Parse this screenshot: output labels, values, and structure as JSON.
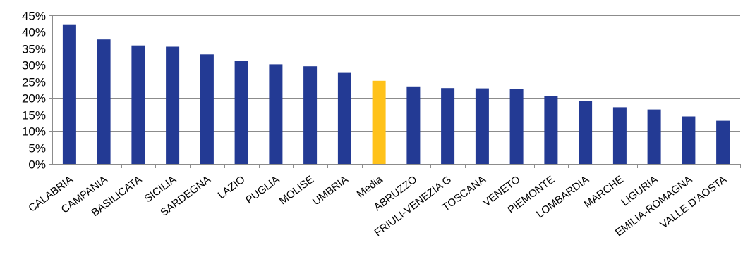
{
  "chart_data": {
    "type": "bar",
    "title": "",
    "xlabel": "",
    "ylabel": "",
    "ylim": [
      0,
      45
    ],
    "yticks": [
      "0%",
      "5%",
      "10%",
      "15%",
      "20%",
      "25%",
      "30%",
      "35%",
      "40%",
      "45%"
    ],
    "grid": true,
    "legend": "none",
    "categories": [
      "CALABRIA",
      "CAMPANIA",
      "BASILICATA",
      "SICILIA",
      "SARDEGNA",
      "LAZIO",
      "PUGLIA",
      "MOLISE",
      "UMBRIA",
      "Media",
      "ABRUZZO",
      "FRIULI-VENEZIA G",
      "TOSCANA",
      "VENETO",
      "PIEMONTE",
      "LOMBARDIA",
      "MARCHE",
      "LIGURIA",
      "EMILIA-ROMAGNA",
      "VALLE D'AOSTA"
    ],
    "values": [
      42.3,
      37.7,
      35.9,
      35.5,
      33.2,
      31.2,
      30.2,
      29.6,
      27.6,
      25.2,
      23.5,
      23.0,
      22.9,
      22.7,
      20.5,
      19.2,
      17.2,
      16.5,
      14.4,
      13.1
    ],
    "colors": {
      "default": "#233a94",
      "highlight": "#ffc21a",
      "highlight_category": "Media"
    }
  }
}
